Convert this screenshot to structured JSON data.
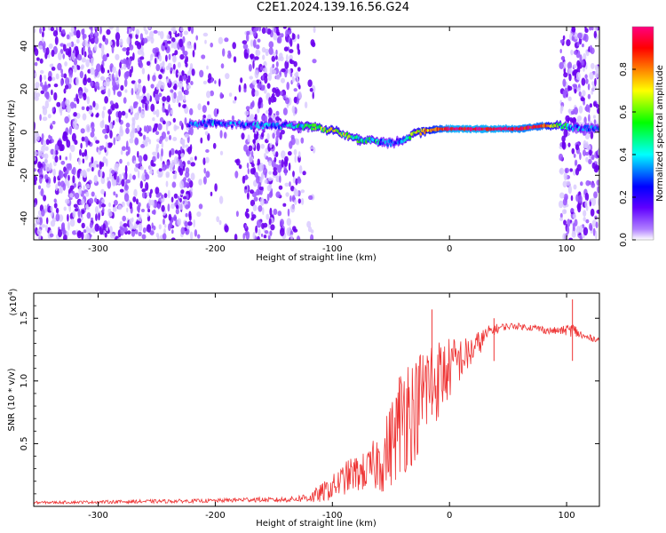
{
  "title": "C2E1.2024.139.16.56.G24",
  "chart_data": [
    {
      "type": "heatmap",
      "xlabel": "Height of straight line (km)",
      "ylabel": "Frequency (Hz)",
      "xlim": [
        -355,
        128
      ],
      "ylim": [
        -50,
        49
      ],
      "x_ticks": [
        -300,
        -200,
        -100,
        0,
        100
      ],
      "x_tick_labels": [
        "-300",
        "-200",
        "-100",
        "0",
        "100"
      ],
      "y_ticks": [
        -40,
        -20,
        0,
        20,
        40
      ],
      "y_tick_labels": [
        "-40",
        "-20",
        "0",
        "20",
        "40"
      ],
      "colorbar": {
        "label": "Normalized spectral amplitude",
        "range": [
          0,
          1
        ],
        "ticks": [
          0,
          0.2,
          0.4,
          0.6,
          0.8
        ],
        "tick_labels": [
          "0.0",
          "0.2",
          "0.4",
          "0.6",
          "0.8"
        ],
        "colormap": [
          "#ffffff",
          "#7000ff",
          "#0000ff",
          "#00ffff",
          "#00ff00",
          "#ffff00",
          "#ff8000",
          "#ff0000",
          "#ff0080"
        ]
      },
      "noise_regions": [
        {
          "x_range": [
            -355,
            -220
          ],
          "density": "high"
        },
        {
          "x_range": [
            -220,
            -175
          ],
          "density": "low"
        },
        {
          "x_range": [
            -175,
            -128
          ],
          "density": "high"
        },
        {
          "x_range": [
            -128,
            -115
          ],
          "density": "low"
        },
        {
          "x_range": [
            95,
            128
          ],
          "density": "high"
        }
      ],
      "signal_trace": {
        "x": [
          -222,
          -200,
          -180,
          -160,
          -140,
          -120,
          -100,
          -85,
          -75,
          -65,
          -55,
          -48,
          -42,
          -35,
          -25,
          -15,
          -10,
          0,
          20,
          40,
          60,
          80,
          95,
          105,
          115,
          128
        ],
        "y": [
          4,
          4,
          3.5,
          3,
          3,
          2.5,
          1,
          -2,
          -4,
          -4,
          -5,
          -5,
          -4,
          -2,
          0,
          1,
          1.5,
          1.5,
          1.5,
          1.5,
          1.5,
          3,
          3,
          2,
          2,
          2
        ],
        "amplitude": [
          0.25,
          0.3,
          0.25,
          0.3,
          0.3,
          0.45,
          0.6,
          0.5,
          0.45,
          0.4,
          0.3,
          0.25,
          0.35,
          0.5,
          0.65,
          0.75,
          0.8,
          0.95,
          0.95,
          0.95,
          0.9,
          0.85,
          0.5,
          0.3,
          0.3,
          0.3
        ]
      }
    },
    {
      "type": "line",
      "xlabel": "Height of straight line (km)",
      "ylabel": "SNR (10 * v/v)",
      "y_multiplier_label": "(x10",
      "y_multiplier_exp": "4",
      "y_multiplier_close": ")",
      "xlim": [
        -355,
        128
      ],
      "ylim": [
        0,
        17000
      ],
      "x_ticks": [
        -300,
        -200,
        -100,
        0,
        100
      ],
      "x_tick_labels": [
        "-300",
        "-200",
        "-100",
        "0",
        "100"
      ],
      "y_ticks": [
        5000,
        10000,
        15000
      ],
      "y_tick_labels": [
        "0.5",
        "1.0",
        "1.5"
      ],
      "color": "#ee3333",
      "series": [
        {
          "x": [
            -355,
            -300,
            -250,
            -200,
            -170,
            -150,
            -130,
            -115,
            -100,
            -85,
            -70,
            -55,
            -45,
            -38,
            -30,
            -20,
            -12,
            -5,
            5,
            15,
            25,
            35,
            45,
            55,
            65,
            75,
            85,
            95,
            105,
            115,
            128
          ],
          "values": [
            300,
            350,
            400,
            450,
            550,
            500,
            600,
            800,
            1500,
            2500,
            2800,
            4000,
            6000,
            8000,
            7500,
            9500,
            10000,
            10500,
            11500,
            12000,
            13000,
            14000,
            14300,
            14400,
            14300,
            14200,
            14000,
            14000,
            14100,
            13500,
            13300
          ],
          "noise_amplitude": [
            100,
            120,
            150,
            150,
            200,
            200,
            250,
            600,
            1000,
            1400,
            1600,
            3000,
            4000,
            5500,
            4000,
            4500,
            3500,
            3000,
            2000,
            1500,
            1000,
            500,
            300,
            250,
            250,
            300,
            300,
            300,
            600,
            300,
            200
          ],
          "spikes": [
            {
              "x": 105,
              "value": 16500
            },
            {
              "x": -15,
              "value": 15700
            },
            {
              "x": 38,
              "value": 15000
            }
          ]
        }
      ]
    }
  ]
}
